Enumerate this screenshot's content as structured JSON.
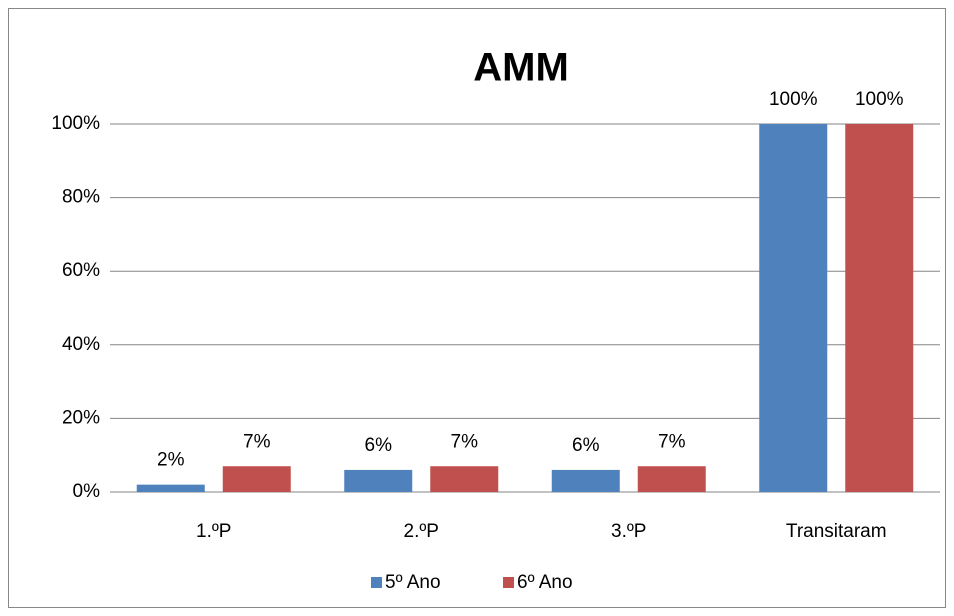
{
  "chart_data": {
    "type": "bar",
    "title": "AMM",
    "categories": [
      "1.ºP",
      "2.ºP",
      "3.ºP",
      "Transitaram"
    ],
    "series": [
      {
        "name": "5º Ano",
        "color": "#4f81bd",
        "values": [
          2,
          6,
          6,
          100
        ],
        "value_labels": [
          "2%",
          "6%",
          "6%",
          "100%"
        ]
      },
      {
        "name": "6º Ano",
        "color": "#c0504d",
        "values": [
          7,
          7,
          7,
          100
        ],
        "value_labels": [
          "7%",
          "7%",
          "7%",
          "100%"
        ]
      }
    ],
    "ylim": [
      0,
      100
    ],
    "yticks": [
      {
        "value": 0,
        "label": "0%"
      },
      {
        "value": 20,
        "label": "20%"
      },
      {
        "value": 40,
        "label": "40%"
      },
      {
        "value": 60,
        "label": "60%"
      },
      {
        "value": 80,
        "label": "80%"
      },
      {
        "value": 100,
        "label": "100%"
      }
    ],
    "grid": true,
    "legend": "bottom"
  }
}
